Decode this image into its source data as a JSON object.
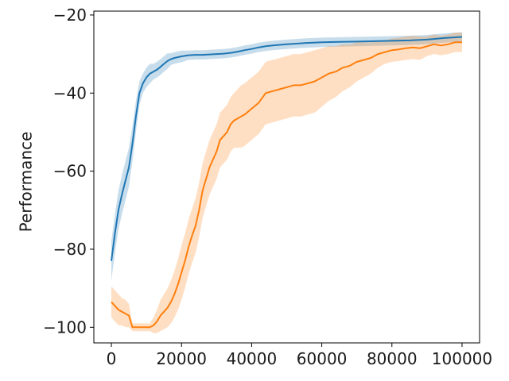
{
  "chart_data": {
    "type": "line",
    "title": "",
    "xlabel": "",
    "ylabel": "Performance",
    "xlim": [
      -5000,
      105000
    ],
    "ylim": [
      -104,
      -19
    ],
    "xticks": [
      0,
      20000,
      40000,
      60000,
      80000,
      100000
    ],
    "yticks": [
      -20,
      -40,
      -60,
      -80,
      -100
    ],
    "grid": false,
    "legend": "none",
    "series": [
      {
        "color": "#1f77b4",
        "x": [
          0,
          1000,
          2000,
          3000,
          4000,
          5000,
          6000,
          7000,
          8000,
          9000,
          10000,
          11000,
          12000,
          13000,
          14000,
          15000,
          16000,
          17000,
          18000,
          19000,
          20000,
          22000,
          24000,
          26000,
          28000,
          30000,
          32000,
          34000,
          36000,
          38000,
          40000,
          42000,
          44000,
          46000,
          50000,
          55000,
          60000,
          65000,
          70000,
          75000,
          80000,
          85000,
          90000,
          95000,
          100000
        ],
        "y": [
          -83,
          -76,
          -70,
          -66,
          -62.5,
          -59,
          -53,
          -46,
          -40,
          -37.5,
          -36,
          -35,
          -34.5,
          -34,
          -33.3,
          -32.5,
          -31.8,
          -31.3,
          -31,
          -30.8,
          -30.6,
          -30.3,
          -30.2,
          -30.2,
          -30.1,
          -30.0,
          -29.9,
          -29.7,
          -29.4,
          -29.0,
          -28.7,
          -28.3,
          -28.0,
          -27.8,
          -27.5,
          -27.2,
          -27.0,
          -26.9,
          -26.8,
          -26.7,
          -26.6,
          -26.5,
          -26.3,
          -25.9,
          -25.6
        ],
        "band_width": [
          5,
          5,
          5,
          5,
          5,
          5,
          4.5,
          4,
          3,
          2.5,
          2.5,
          2.5,
          2,
          2,
          2,
          2,
          2,
          1.5,
          1.5,
          1.5,
          1.5,
          1.2,
          1.2,
          1.2,
          1.2,
          1.2,
          1.2,
          1.2,
          1.2,
          1.2,
          1.2,
          1.2,
          1.2,
          1.2,
          1.2,
          1.2,
          1.2,
          1.2,
          1.2,
          1.2,
          1.2,
          1.2,
          1.2,
          1.2,
          1.2
        ]
      },
      {
        "color": "#ff7f0e",
        "x": [
          0,
          1000,
          2000,
          3000,
          4000,
          5000,
          6000,
          7000,
          8000,
          9000,
          10000,
          11000,
          12000,
          13000,
          14000,
          15000,
          16000,
          17000,
          18000,
          19000,
          20000,
          21000,
          22000,
          23000,
          24000,
          25000,
          26000,
          27000,
          28000,
          29000,
          30000,
          31000,
          32000,
          33000,
          34000,
          35000,
          36000,
          37000,
          38000,
          40000,
          42000,
          44000,
          46000,
          48000,
          50000,
          52000,
          54000,
          56000,
          58000,
          60000,
          62000,
          64000,
          66000,
          68000,
          70000,
          72000,
          74000,
          76000,
          78000,
          80000,
          82000,
          84000,
          86000,
          88000,
          90000,
          92000,
          94000,
          96000,
          98000,
          100000
        ],
        "y": [
          -93.5,
          -94.5,
          -95.5,
          -96,
          -96.5,
          -97,
          -100,
          -100,
          -100,
          -100,
          -100,
          -100,
          -99.5,
          -98.5,
          -97,
          -96,
          -95,
          -93.5,
          -91.5,
          -89,
          -86,
          -83,
          -79.5,
          -76.5,
          -74,
          -70,
          -65,
          -62,
          -59,
          -57,
          -55,
          -52,
          -51,
          -50,
          -48,
          -47,
          -46.5,
          -46,
          -45.5,
          -44,
          -42.5,
          -40,
          -39.5,
          -39,
          -38.5,
          -38,
          -38,
          -37.5,
          -37,
          -36,
          -35,
          -34.5,
          -33.5,
          -33,
          -32,
          -31.5,
          -31,
          -30,
          -29.5,
          -29,
          -28.8,
          -28.5,
          -28.3,
          -28.5,
          -28,
          -27.5,
          -27.8,
          -27.5,
          -27,
          -27
        ],
        "band_width": [
          4,
          4,
          4,
          3.5,
          3.5,
          3,
          1,
          1,
          1,
          1,
          1,
          1,
          2,
          3,
          4,
          4.5,
          5,
          5.5,
          6,
          6.5,
          7,
          7,
          7,
          7,
          7,
          7,
          7,
          7,
          7,
          7,
          7,
          7,
          7,
          7,
          7,
          7,
          7.5,
          8,
          8,
          8,
          8,
          8,
          8,
          8,
          8,
          8,
          8,
          8,
          8,
          7.5,
          7,
          6.5,
          6,
          5.5,
          5,
          4.5,
          4,
          3.5,
          3,
          3,
          3,
          3,
          3,
          3,
          2.5,
          2.5,
          2.5,
          2.5,
          2.5,
          2.5
        ]
      }
    ]
  }
}
